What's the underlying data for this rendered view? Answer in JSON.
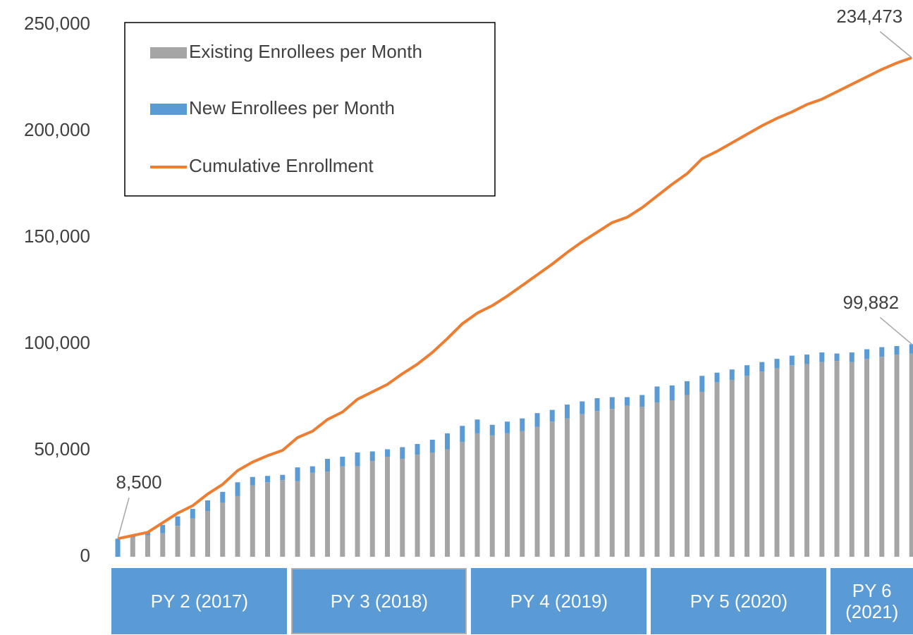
{
  "chart_data": {
    "type": "combo",
    "categories": [
      null,
      null,
      null,
      null,
      null,
      null,
      null,
      null,
      null,
      null,
      null,
      null,
      null,
      null,
      null,
      null,
      null,
      null,
      null,
      null,
      null,
      null,
      null,
      null,
      null,
      null,
      null,
      null,
      null,
      null,
      null,
      null,
      null,
      null,
      null,
      null,
      null,
      null,
      null,
      null,
      null,
      null,
      null,
      null,
      null,
      null,
      null,
      null,
      null,
      null,
      null,
      null,
      null,
      null
    ],
    "series": [
      {
        "name": "Existing Enrollees per Month",
        "type": "bar",
        "color": "#a5a5a5",
        "values": [
          0,
          9000,
          10000,
          11000,
          14500,
          18000,
          21500,
          25500,
          28500,
          33500,
          35000,
          36000,
          35500,
          39500,
          40000,
          42500,
          42500,
          45000,
          47000,
          46000,
          48000,
          49000,
          50500,
          54000,
          58000,
          57000,
          58000,
          59000,
          61000,
          63500,
          65000,
          67000,
          68500,
          69500,
          71000,
          70500,
          72500,
          73500,
          76000,
          77500,
          82000,
          83000,
          85000,
          87000,
          88500,
          90000,
          90500,
          91500,
          92000,
          91500,
          93000,
          94000,
          95000,
          95500
        ]
      },
      {
        "name": "New Enrollees per Month",
        "type": "bar",
        "color": "#5b9bd5",
        "values": [
          8500,
          1000,
          1500,
          4000,
          4500,
          4500,
          5000,
          5000,
          6500,
          4000,
          3000,
          2500,
          6500,
          3000,
          6000,
          4500,
          6500,
          4500,
          3500,
          5500,
          5000,
          6000,
          7500,
          7500,
          6500,
          5000,
          5500,
          6000,
          6500,
          5500,
          6500,
          6000,
          6000,
          5500,
          4000,
          5500,
          7500,
          7000,
          6500,
          7500,
          4500,
          5000,
          5000,
          4500,
          4500,
          4500,
          4500,
          4500,
          3500,
          4500,
          4500,
          4500,
          4000,
          4382
        ]
      },
      {
        "name": "Cumulative Enrollment",
        "type": "line",
        "color": "#ed7d31",
        "values": [
          8500,
          10000,
          11500,
          16000,
          20500,
          24000,
          29500,
          34000,
          40500,
          44500,
          47500,
          50000,
          56000,
          59000,
          64500,
          68000,
          74000,
          77500,
          81000,
          86000,
          90500,
          96000,
          102500,
          109500,
          114500,
          118000,
          122500,
          127500,
          132500,
          137500,
          143000,
          148000,
          152500,
          157000,
          159500,
          164000,
          169500,
          175000,
          180000,
          187000,
          190500,
          194500,
          198500,
          202500,
          206000,
          209000,
          212500,
          215000,
          218500,
          222000,
          225500,
          229000,
          232000,
          234473
        ],
        "value_labels": [
          "8,500",
          null,
          null,
          null,
          null,
          null,
          null,
          null,
          null,
          null,
          null,
          null,
          null,
          null,
          null,
          null,
          null,
          null,
          null,
          null,
          null,
          null,
          null,
          null,
          null,
          null,
          null,
          null,
          null,
          null,
          null,
          null,
          null,
          null,
          null,
          null,
          null,
          null,
          null,
          null,
          null,
          null,
          null,
          null,
          null,
          null,
          null,
          null,
          null,
          null,
          null,
          null,
          null,
          "234,473"
        ]
      }
    ],
    "annotations": [
      {
        "label": "99,882",
        "value": 99882
      }
    ],
    "program_years": [
      "PY 2 (2017)",
      "PY 3 (2018)",
      "PY 4 (2019)",
      "PY 5 (2020)",
      "PY 6 (2021)"
    ],
    "ylim": [
      0,
      250000
    ],
    "yticks": [
      0,
      {
        "value": 50000,
        "label": "50,000"
      },
      {
        "value": 100000,
        "label": "100,000"
      },
      {
        "value": 150000,
        "label": "150,000"
      },
      {
        "value": 200000,
        "label": "200,000"
      },
      {
        "value": 250000,
        "label": "250,000"
      }
    ],
    "grid": false,
    "legend": "top-left"
  }
}
